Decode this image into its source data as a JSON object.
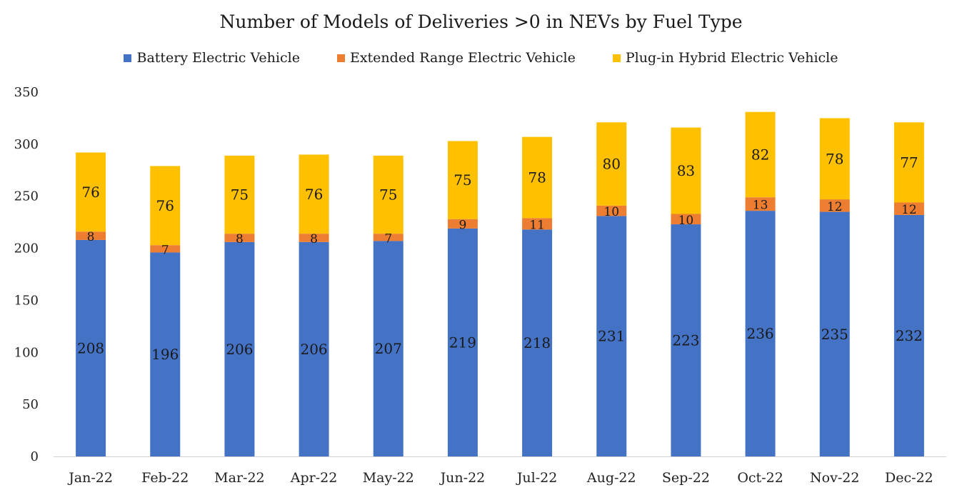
{
  "chart_data": {
    "type": "bar",
    "stacked": true,
    "title": "Number of Models of Deliveries >0 in NEVs by Fuel Type",
    "xlabel": "",
    "ylabel": "",
    "ylim": [
      0,
      350
    ],
    "yticks": [
      0,
      50,
      100,
      150,
      200,
      250,
      300,
      350
    ],
    "grid": false,
    "legend_position": "top",
    "categories": [
      "Jan-22",
      "Feb-22",
      "Mar-22",
      "Apr-22",
      "May-22",
      "Jun-22",
      "Jul-22",
      "Aug-22",
      "Sep-22",
      "Oct-22",
      "Nov-22",
      "Dec-22"
    ],
    "series": [
      {
        "name": "Battery Electric Vehicle",
        "color": "#4472C4",
        "values": [
          208,
          196,
          206,
          206,
          207,
          219,
          218,
          231,
          223,
          236,
          235,
          232
        ]
      },
      {
        "name": "Extended Range Electric Vehicle",
        "color": "#ED7D31",
        "values": [
          8,
          7,
          8,
          8,
          7,
          9,
          11,
          10,
          10,
          13,
          12,
          12
        ]
      },
      {
        "name": "Plug-in Hybrid Electric Vehicle",
        "color": "#FFC000",
        "values": [
          76,
          76,
          75,
          76,
          75,
          75,
          78,
          80,
          83,
          82,
          78,
          77
        ]
      }
    ]
  }
}
